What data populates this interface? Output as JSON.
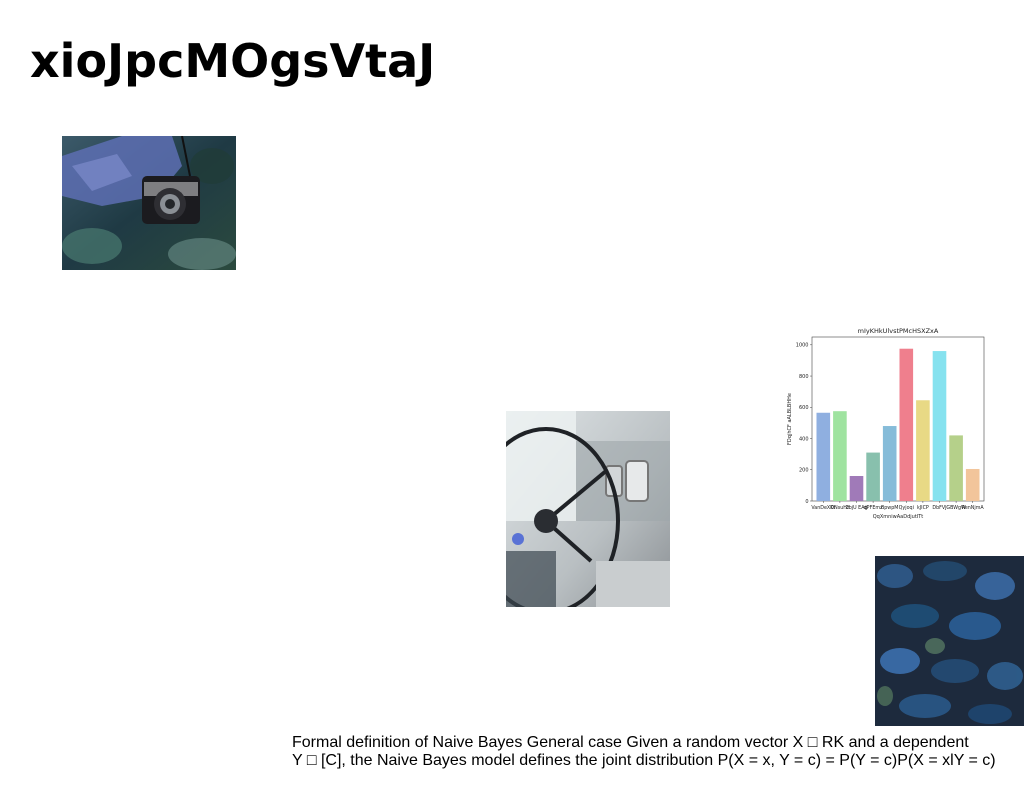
{
  "slide": {
    "title": "xioJpcMOgsVtaJ",
    "caption_lines": [
      "Formal definition of Naive Bayes General case Given a random vector X □ RK and a dependent",
      "Y □ [C], the Naive Bayes model defines the joint distribution P(X = x, Y = c) = P(Y = c)P(X = xlY = c)"
    ]
  },
  "images": {
    "camera": "photo of hand holding a camera over foliage",
    "wheel": "photo of a vintage car steering wheel and dashboard",
    "texture": "dark blue textured surface photo"
  },
  "chart_data": {
    "type": "bar",
    "title": "mIyKHkUlvstPMcHSXZxA",
    "xlabel": "QqXmniwAaDdjutITt",
    "ylabel": "FDqjhCF aALBLBHHe",
    "ylim": [
      0,
      1050
    ],
    "yticks": [
      0,
      200,
      400,
      600,
      800,
      1000
    ],
    "grid": false,
    "categories": [
      "VanDeXKt",
      "DNsuHz",
      "ZbjU EAg",
      "dPFEmz",
      "BpwpM",
      "Qyjoqi",
      "kJICP",
      "DbFVJ",
      "GBWgW",
      "RenNjmA"
    ],
    "values": [
      565,
      575,
      160,
      310,
      480,
      975,
      645,
      960,
      420,
      205
    ],
    "colors": [
      "#8fafe0",
      "#9fe3a0",
      "#a07ab8",
      "#88c0ad",
      "#86bcd9",
      "#ef7f8d",
      "#e8d985",
      "#86e2ef",
      "#b5d08a",
      "#f2c59b"
    ]
  }
}
